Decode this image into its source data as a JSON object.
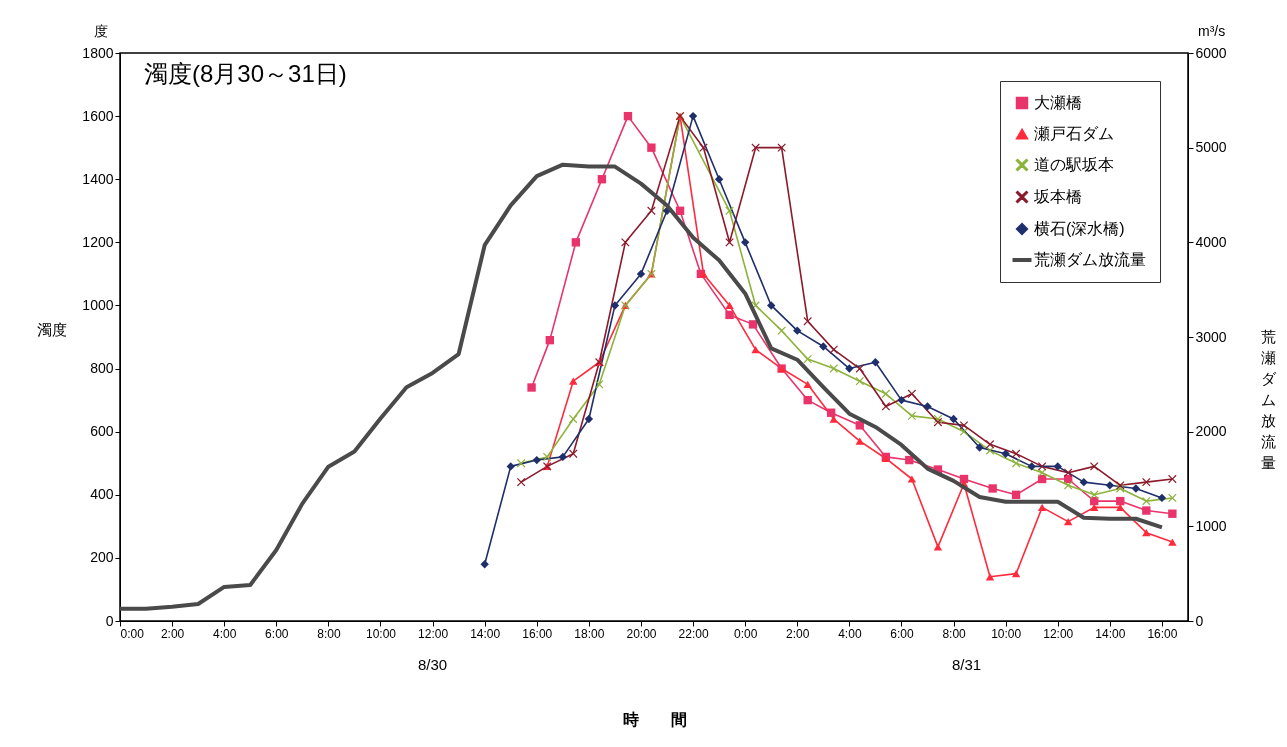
{
  "chart_data": {
    "type": "line",
    "title": "濁度(8月30～31日)",
    "xlabel": "時　　間",
    "ylabel": "濁度",
    "y2label": "荒瀬ダム放流量",
    "xlim": [
      "--08-30T00:00",
      "--08-31T17:00"
    ],
    "xticks": [
      {
        "value": "--08-30T00:00",
        "label": "0:00"
      },
      {
        "value": "--08-30T02:00",
        "label": "2:00"
      },
      {
        "value": "--08-30T04:00",
        "label": "4:00"
      },
      {
        "value": "--08-30T06:00",
        "label": "6:00"
      },
      {
        "value": "--08-30T08:00",
        "label": "8:00"
      },
      {
        "value": "--08-30T10:00",
        "label": "10:00"
      },
      {
        "value": "--08-30T12:00",
        "label": "12:00"
      },
      {
        "value": "--08-30T14:00",
        "label": "14:00"
      },
      {
        "value": "--08-30T16:00",
        "label": "16:00"
      },
      {
        "value": "--08-30T18:00",
        "label": "18:00"
      },
      {
        "value": "--08-30T20:00",
        "label": "20:00"
      },
      {
        "value": "--08-30T22:00",
        "label": "22:00"
      },
      {
        "value": "--08-31T00:00",
        "label": "0:00"
      },
      {
        "value": "--08-31T02:00",
        "label": "2:00"
      },
      {
        "value": "--08-31T04:00",
        "label": "4:00"
      },
      {
        "value": "--08-31T06:00",
        "label": "6:00"
      },
      {
        "value": "--08-31T08:00",
        "label": "8:00"
      },
      {
        "value": "--08-31T10:00",
        "label": "10:00"
      },
      {
        "value": "--08-31T12:00",
        "label": "12:00"
      },
      {
        "value": "--08-31T14:00",
        "label": "14:00"
      },
      {
        "value": "--08-31T16:00",
        "label": "16:00"
      }
    ],
    "ylim": [
      0,
      1800
    ],
    "yticks": [
      0,
      200,
      400,
      600,
      800,
      1000,
      1200,
      1400,
      1600,
      1800
    ],
    "y2lim": [
      0,
      6000
    ],
    "y2ticks": [
      0,
      1000,
      2000,
      3000,
      4000,
      5000,
      6000
    ],
    "legend": "top right",
    "annotations": [
      "度",
      "m³/s",
      "8/30",
      "8/31"
    ],
    "series": [
      {
        "name": "大瀬橋",
        "color": "#e8336b",
        "marker": "square",
        "x": [
          "--08-30T15:48",
          "--08-30T16:30",
          "--08-30T17:30",
          "--08-30T18:30",
          "--08-30T19:30",
          "--08-30T20:24",
          "--08-30T21:30",
          "--08-30T22:18",
          "--08-30T23:24",
          "--08-31T00:18",
          "--08-31T01:24",
          "--08-31T02:24",
          "--08-31T03:18",
          "--08-31T04:24",
          "--08-31T05:24",
          "--08-31T06:18",
          "--08-31T07:24",
          "--08-31T08:24",
          "--08-31T09:30",
          "--08-31T10:24",
          "--08-31T11:24",
          "--08-31T12:24",
          "--08-31T13:24",
          "--08-31T14:24",
          "--08-31T15:24",
          "--08-31T16:24"
        ],
        "values": [
          740,
          890,
          1200,
          1400,
          1600,
          1500,
          1300,
          1100,
          970,
          940,
          800,
          700,
          660,
          620,
          520,
          510,
          480,
          450,
          420,
          400,
          450,
          450,
          380,
          380,
          350,
          340
        ]
      },
      {
        "name": "瀬戸石ダム",
        "color": "#ff2a3c",
        "marker": "triangle",
        "x": [
          "--08-30T16:24",
          "--08-30T17:24",
          "--08-30T18:24",
          "--08-30T19:24",
          "--08-30T20:24",
          "--08-30T21:30",
          "--08-30T22:24",
          "--08-30T23:24",
          "--08-31T00:24",
          "--08-31T01:24",
          "--08-31T02:24",
          "--08-31T03:24",
          "--08-31T04:24",
          "--08-31T05:24",
          "--08-31T06:24",
          "--08-31T07:24",
          "--08-31T08:24",
          "--08-31T09:24",
          "--08-31T10:24",
          "--08-31T11:24",
          "--08-31T12:24",
          "--08-31T13:24",
          "--08-31T14:24",
          "--08-31T15:24",
          "--08-31T16:24"
        ],
        "values": [
          490,
          760,
          820,
          1000,
          1100,
          1600,
          1100,
          1000,
          860,
          800,
          750,
          640,
          570,
          515,
          450,
          235,
          435,
          140,
          150,
          360,
          315,
          360,
          360,
          280,
          250
        ]
      },
      {
        "name": "道の駅坂本",
        "color": "#8db33a",
        "marker": "cross",
        "x": [
          "--08-30T15:24",
          "--08-30T16:24",
          "--08-30T17:24",
          "--08-30T18:24",
          "--08-30T19:24",
          "--08-30T20:24",
          "--08-30T21:30",
          "--08-30T23:24",
          "--08-31T00:24",
          "--08-31T01:24",
          "--08-31T02:24",
          "--08-31T03:24",
          "--08-31T04:24",
          "--08-31T05:24",
          "--08-31T06:24",
          "--08-31T07:24",
          "--08-31T08:24",
          "--08-31T09:24",
          "--08-31T10:24",
          "--08-31T11:24",
          "--08-31T12:24",
          "--08-31T13:24",
          "--08-31T14:24",
          "--08-31T15:24",
          "--08-31T16:24"
        ],
        "values": [
          500,
          520,
          640,
          750,
          1000,
          1100,
          1600,
          1300,
          1000,
          920,
          830,
          800,
          760,
          720,
          650,
          640,
          600,
          540,
          500,
          470,
          430,
          400,
          420,
          380,
          390
        ]
      },
      {
        "name": "坂本橋",
        "color": "#8b1a2b",
        "marker": "cross",
        "x": [
          "--08-30T15:24",
          "--08-30T16:24",
          "--08-30T17:24",
          "--08-30T18:24",
          "--08-30T19:24",
          "--08-30T20:24",
          "--08-30T21:30",
          "--08-30T22:24",
          "--08-30T23:24",
          "--08-31T00:24",
          "--08-31T01:24",
          "--08-31T02:24",
          "--08-31T03:24",
          "--08-31T04:24",
          "--08-31T05:24",
          "--08-31T06:24",
          "--08-31T07:24",
          "--08-31T08:24",
          "--08-31T09:24",
          "--08-31T10:24",
          "--08-31T11:24",
          "--08-31T12:24",
          "--08-31T13:24",
          "--08-31T14:24",
          "--08-31T15:24",
          "--08-31T16:24"
        ],
        "values": [
          440,
          490,
          530,
          820,
          1200,
          1300,
          1600,
          1500,
          1200,
          1500,
          1500,
          950,
          860,
          800,
          680,
          720,
          630,
          620,
          560,
          530,
          490,
          470,
          490,
          430,
          440,
          450
        ]
      },
      {
        "name": "横石(深水橋)",
        "color": "#1f2f6b",
        "marker": "diamond",
        "x": [
          "--08-30T14:00",
          "--08-30T15:00",
          "--08-30T16:00",
          "--08-30T17:00",
          "--08-30T18:00",
          "--08-30T19:00",
          "--08-30T20:00",
          "--08-30T21:00",
          "--08-30T22:00",
          "--08-30T23:00",
          "--08-31T00:00",
          "--08-31T01:00",
          "--08-31T02:00",
          "--08-31T03:00",
          "--08-31T04:00",
          "--08-31T05:00",
          "--08-31T06:00",
          "--08-31T07:00",
          "--08-31T08:00",
          "--08-31T09:00",
          "--08-31T10:00",
          "--08-31T11:00",
          "--08-31T12:00",
          "--08-31T13:00",
          "--08-31T14:00",
          "--08-31T15:00",
          "--08-31T16:00"
        ],
        "values": [
          180,
          490,
          510,
          520,
          640,
          1000,
          1100,
          1300,
          1600,
          1400,
          1200,
          1000,
          920,
          870,
          800,
          820,
          700,
          680,
          640,
          550,
          530,
          490,
          490,
          440,
          430,
          420,
          390
        ]
      },
      {
        "name": "荒瀬ダム放流量",
        "color": "#4a4a4a",
        "marker": "none",
        "axis": "y2",
        "x": [
          "--08-30T00:00",
          "--08-30T01:00",
          "--08-30T02:00",
          "--08-30T03:00",
          "--08-30T04:00",
          "--08-30T05:00",
          "--08-30T06:00",
          "--08-30T07:00",
          "--08-30T08:00",
          "--08-30T09:00",
          "--08-30T10:00",
          "--08-30T11:00",
          "--08-30T12:00",
          "--08-30T13:00",
          "--08-30T14:00",
          "--08-30T15:00",
          "--08-30T16:00",
          "--08-30T17:00",
          "--08-30T18:00",
          "--08-30T19:00",
          "--08-30T20:00",
          "--08-30T21:00",
          "--08-30T22:00",
          "--08-30T23:00",
          "--08-31T00:00",
          "--08-31T01:00",
          "--08-31T02:00",
          "--08-31T03:00",
          "--08-31T04:00",
          "--08-31T05:00",
          "--08-31T06:00",
          "--08-31T07:00",
          "--08-31T08:00",
          "--08-31T09:00",
          "--08-31T10:00",
          "--08-31T11:00",
          "--08-31T12:00",
          "--08-31T13:00",
          "--08-31T14:00",
          "--08-31T15:00",
          "--08-31T16:00"
        ],
        "values": [
          130,
          130,
          150,
          180,
          360,
          380,
          750,
          1240,
          1630,
          1790,
          2140,
          2470,
          2620,
          2820,
          3970,
          4390,
          4700,
          4820,
          4800,
          4800,
          4620,
          4390,
          4050,
          3810,
          3460,
          2880,
          2760,
          2470,
          2190,
          2050,
          1860,
          1610,
          1480,
          1310,
          1260,
          1260,
          1260,
          1090,
          1080,
          1080,
          990
        ]
      }
    ]
  }
}
